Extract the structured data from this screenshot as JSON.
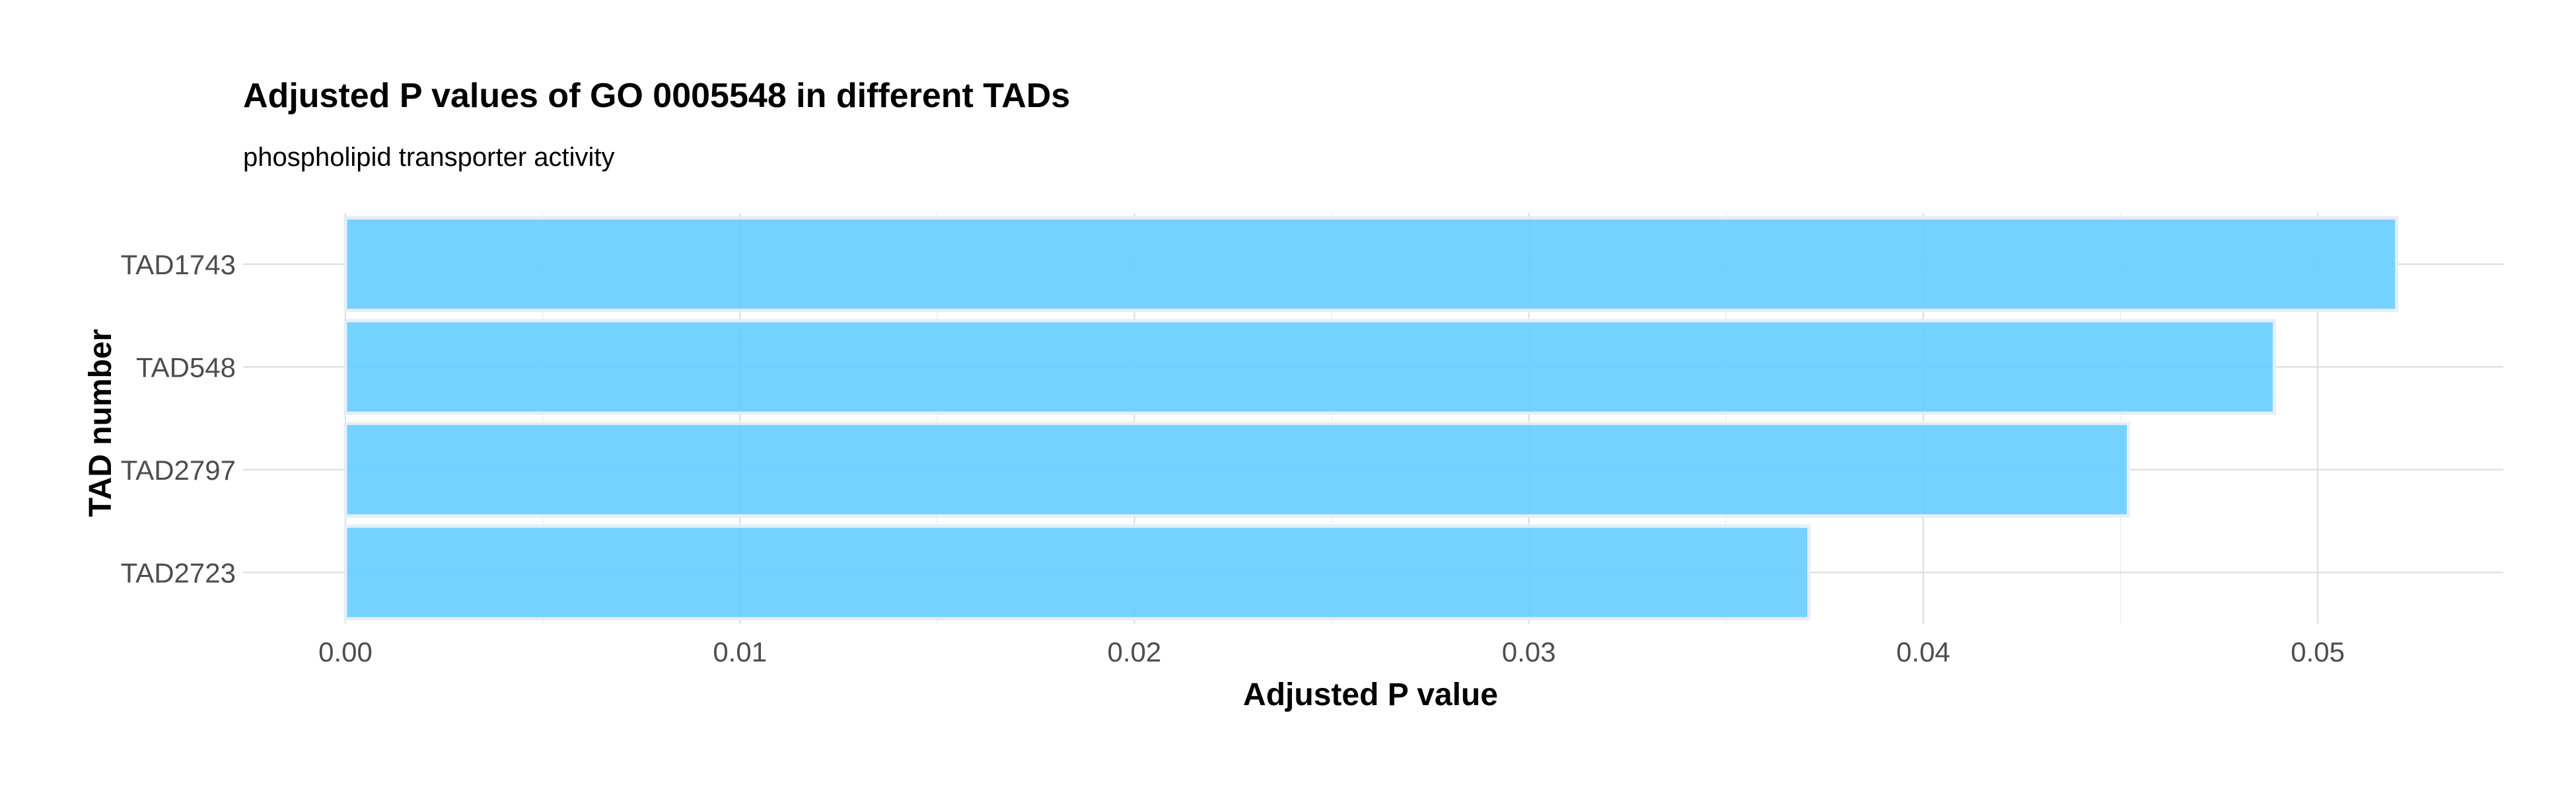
{
  "chart_data": {
    "type": "bar",
    "orientation": "horizontal",
    "title": "Adjusted P values of GO 0005548 in different TADs",
    "subtitle": "phospholipid transporter activity",
    "xlabel": "Adjusted P value",
    "ylabel": "TAD number",
    "categories": [
      "TAD1743",
      "TAD548",
      "TAD2797",
      "TAD2723"
    ],
    "values": [
      0.052,
      0.0489,
      0.0452,
      0.0371
    ],
    "xlim": [
      0,
      0.0545
    ],
    "xticks": [
      0.0,
      0.01,
      0.02,
      0.03,
      0.04,
      0.05
    ],
    "xtick_labels": [
      "0.00",
      "0.01",
      "0.02",
      "0.03",
      "0.04",
      "0.05"
    ],
    "bar_color": "#66ccff",
    "grid": true,
    "legend": "none"
  }
}
